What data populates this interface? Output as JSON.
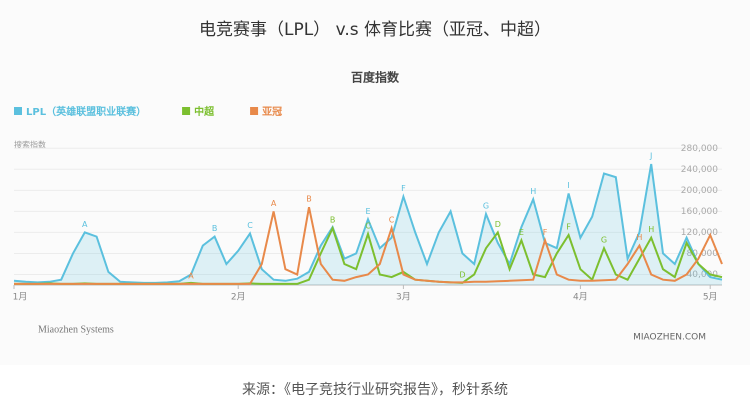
{
  "chart_data": {
    "type": "line",
    "title": "电竞赛事（LPL） v.s 体育比赛（亚冠、中超）",
    "subtitle": "百度指数",
    "y_axis_label": "搜索指数",
    "brand": "Miaozhen Systems",
    "watermark": "MIAOZHEN.COM",
    "source": "来源：《电子竞技行业研究报告》，秒针系统",
    "categories": [
      "1月",
      null,
      null,
      null,
      null,
      null,
      null,
      null,
      null,
      null,
      null,
      null,
      null,
      null,
      null,
      null,
      null,
      null,
      null,
      "2月",
      null,
      null,
      null,
      null,
      null,
      null,
      null,
      null,
      null,
      null,
      null,
      null,
      null,
      "3月",
      null,
      null,
      null,
      null,
      null,
      null,
      null,
      null,
      null,
      null,
      null,
      null,
      null,
      null,
      "4月",
      null,
      null,
      null,
      null,
      null,
      null,
      null,
      null,
      null,
      null,
      "5月",
      null
    ],
    "ylim": [
      20000,
      290000
    ],
    "yticks": [
      {
        "value": 40000,
        "label": "40,000"
      },
      {
        "value": 80000,
        "label": "80,000"
      },
      {
        "value": 120000,
        "label": "120,000"
      },
      {
        "value": 160000,
        "label": "160,000"
      },
      {
        "value": 200000,
        "label": "200,000"
      },
      {
        "value": 240000,
        "label": "240,000"
      },
      {
        "value": 280000,
        "label": "280,000"
      }
    ],
    "grid": true,
    "series": [
      {
        "name": "LPL（英雄联盟职业联赛）",
        "color": "#5bc0de",
        "fill": true,
        "values": [
          28000,
          26000,
          25000,
          26000,
          30000,
          80000,
          120000,
          112000,
          45000,
          26000,
          25000,
          24000,
          24000,
          25000,
          27000,
          40000,
          95000,
          112000,
          60000,
          85000,
          118000,
          50000,
          30000,
          28000,
          32000,
          45000,
          95000,
          130000,
          70000,
          80000,
          145000,
          90000,
          110000,
          188000,
          120000,
          60000,
          120000,
          160000,
          80000,
          60000,
          155000,
          100000,
          60000,
          130000,
          183000,
          100000,
          90000,
          194000,
          110000,
          150000,
          232000,
          225000,
          70000,
          120000,
          250000,
          80000,
          60000,
          110000,
          60000,
          35000,
          30000
        ],
        "point_labels": [
          null,
          null,
          null,
          null,
          null,
          null,
          "A",
          null,
          null,
          null,
          null,
          null,
          null,
          null,
          null,
          null,
          null,
          "B",
          null,
          null,
          "C",
          null,
          null,
          null,
          null,
          null,
          null,
          null,
          null,
          null,
          "E",
          null,
          null,
          "F",
          null,
          null,
          null,
          null,
          null,
          null,
          "G",
          null,
          null,
          null,
          "H",
          null,
          null,
          "I",
          null,
          null,
          null,
          null,
          null,
          null,
          "J",
          null,
          null,
          null,
          null,
          null,
          null
        ]
      },
      {
        "name": "中超",
        "color": "#7cbf2f",
        "fill": false,
        "values": [
          22000,
          22000,
          22000,
          23000,
          22000,
          22000,
          23000,
          22000,
          22000,
          22000,
          22000,
          22000,
          22000,
          22000,
          22000,
          24000,
          22000,
          22000,
          22000,
          22000,
          23000,
          22000,
          22000,
          22000,
          22000,
          30000,
          80000,
          128000,
          60000,
          50000,
          117000,
          40000,
          35000,
          45000,
          30000,
          28000,
          26000,
          25000,
          24000,
          40000,
          90000,
          120000,
          50000,
          105000,
          40000,
          35000,
          80000,
          115000,
          50000,
          30000,
          90000,
          40000,
          30000,
          70000,
          110000,
          50000,
          35000,
          100000,
          60000,
          40000,
          35000
        ],
        "point_labels": [
          null,
          null,
          null,
          null,
          null,
          null,
          null,
          null,
          null,
          null,
          null,
          null,
          null,
          null,
          null,
          null,
          null,
          null,
          null,
          null,
          null,
          null,
          null,
          null,
          null,
          null,
          null,
          "B",
          null,
          null,
          "C",
          null,
          null,
          null,
          null,
          null,
          null,
          null,
          "D",
          null,
          null,
          "D",
          null,
          "E",
          null,
          null,
          null,
          "F",
          null,
          null,
          "G",
          null,
          null,
          null,
          "H",
          null,
          null,
          null,
          null,
          null,
          null
        ]
      },
      {
        "name": "亚冠",
        "color": "#e8894a",
        "fill": false,
        "values": [
          22000,
          22000,
          22000,
          22000,
          22000,
          22000,
          22000,
          22000,
          22000,
          22000,
          22000,
          22000,
          22000,
          22000,
          22000,
          22000,
          22000,
          22000,
          22000,
          22000,
          22000,
          60000,
          160000,
          50000,
          40000,
          168000,
          60000,
          30000,
          28000,
          35000,
          40000,
          60000,
          128000,
          40000,
          30000,
          28000,
          26000,
          25000,
          25000,
          26000,
          26000,
          27000,
          28000,
          29000,
          30000,
          105000,
          40000,
          30000,
          28000,
          28000,
          29000,
          30000,
          60000,
          95000,
          40000,
          30000,
          28000,
          40000,
          70000,
          115000,
          60000
        ],
        "point_labels": [
          null,
          null,
          null,
          null,
          null,
          null,
          null,
          null,
          null,
          null,
          null,
          null,
          null,
          null,
          null,
          "A",
          null,
          null,
          null,
          null,
          null,
          null,
          "A",
          null,
          null,
          "B",
          null,
          null,
          null,
          null,
          null,
          null,
          "C",
          null,
          null,
          null,
          null,
          null,
          null,
          null,
          null,
          null,
          null,
          null,
          null,
          "F",
          null,
          null,
          null,
          null,
          null,
          null,
          null,
          "H",
          null,
          null,
          null,
          null,
          null,
          null,
          null
        ]
      }
    ]
  }
}
